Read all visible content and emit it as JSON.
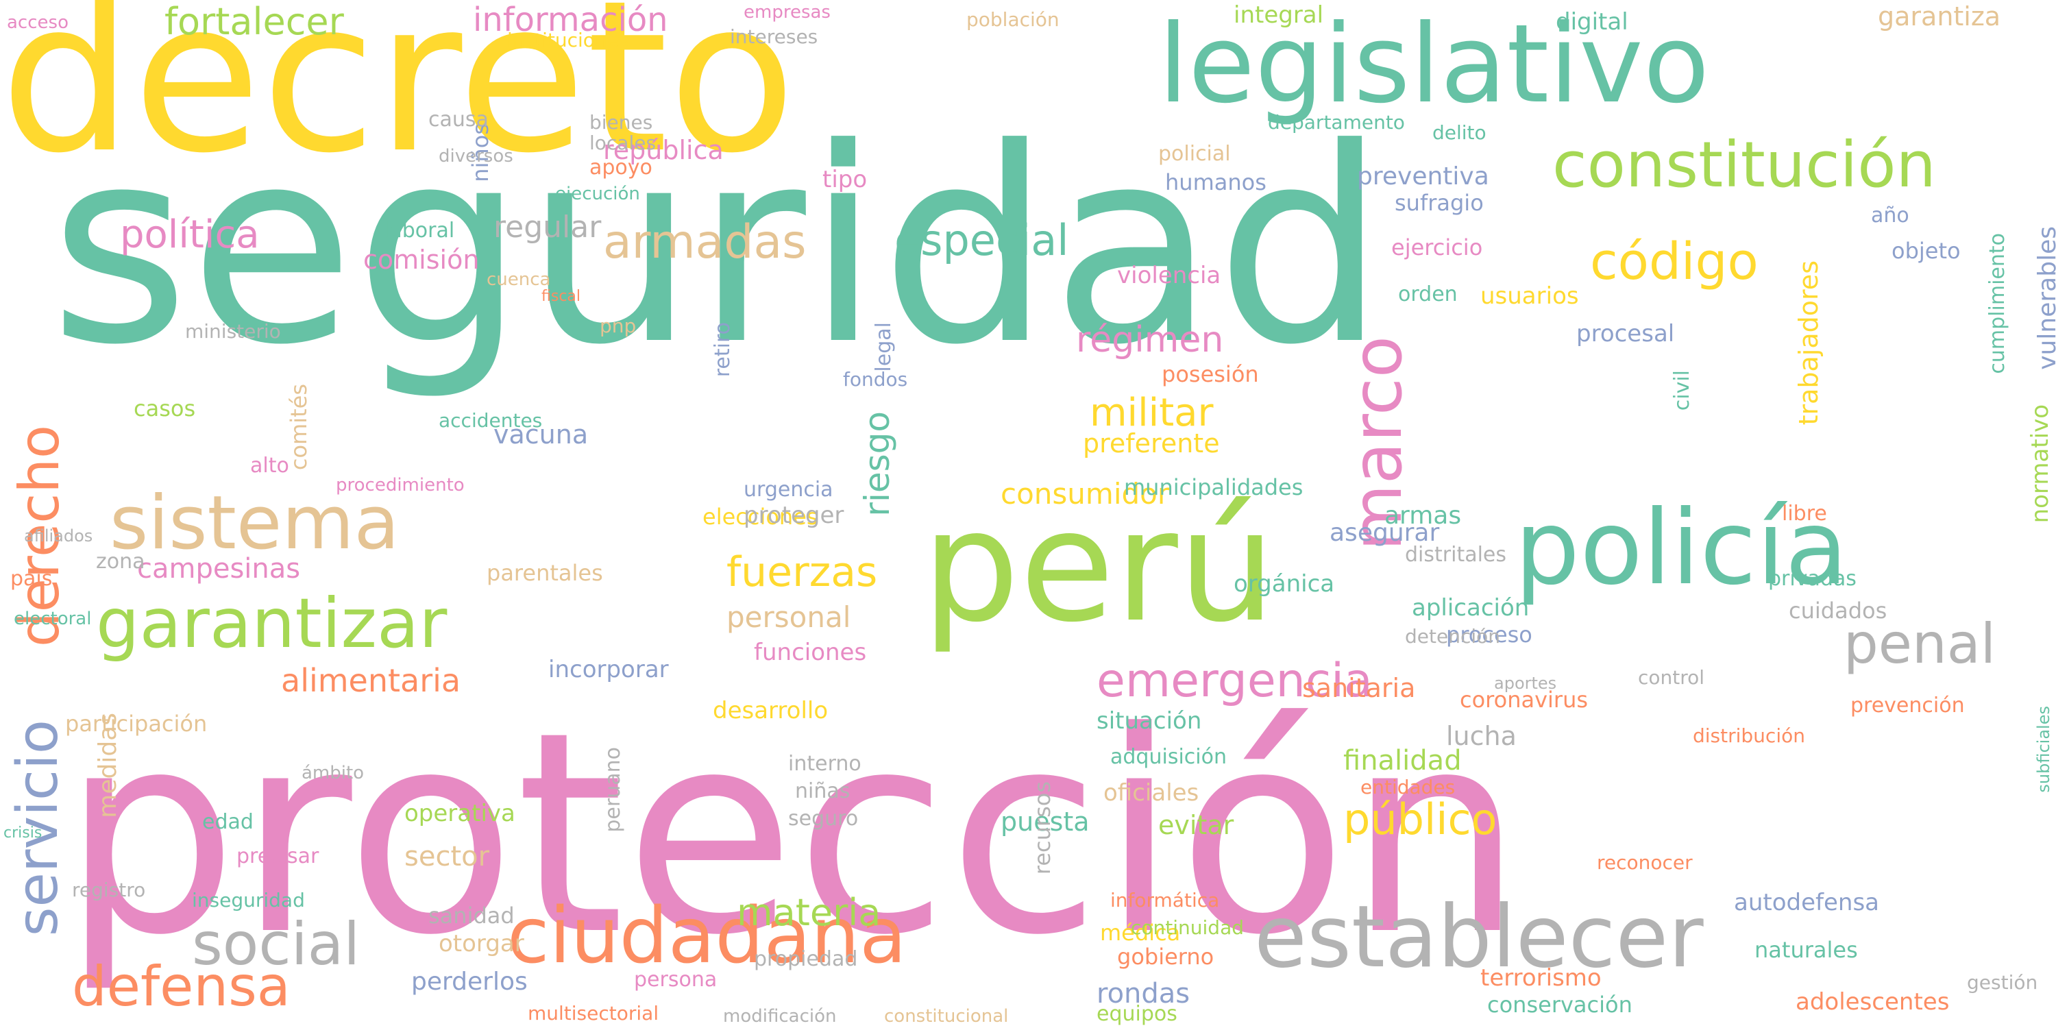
{
  "palette": {
    "green": "#66c2a5",
    "orange": "#fc8d62",
    "blue": "#8da0cb",
    "pink": "#e78ac3",
    "lime": "#a6d854",
    "yellow": "#ffd92f",
    "tan": "#e5c494",
    "gray": "#b3b3b3"
  },
  "words": [
    {
      "text": "seguridad",
      "color": "green"
    },
    {
      "text": "protección",
      "color": "pink"
    },
    {
      "text": "decreto",
      "color": "yellow"
    },
    {
      "text": "legislativo",
      "color": "green"
    },
    {
      "text": "perú",
      "color": "lime"
    },
    {
      "text": "policía",
      "color": "green"
    },
    {
      "text": "establecer",
      "color": "gray"
    },
    {
      "text": "ciudadana",
      "color": "orange"
    },
    {
      "text": "sistema",
      "color": "tan"
    },
    {
      "text": "garantizar",
      "color": "lime"
    },
    {
      "text": "constitución",
      "color": "lime"
    },
    {
      "text": "marco",
      "color": "pink"
    },
    {
      "text": "social",
      "color": "gray"
    },
    {
      "text": "defensa",
      "color": "orange"
    },
    {
      "text": "servicio",
      "color": "blue"
    },
    {
      "text": "derecho",
      "color": "orange"
    },
    {
      "text": "emergencia",
      "color": "pink"
    },
    {
      "text": "penal",
      "color": "gray"
    },
    {
      "text": "código",
      "color": "yellow"
    },
    {
      "text": "armadas",
      "color": "tan"
    },
    {
      "text": "fuerzas",
      "color": "yellow"
    },
    {
      "text": "militar",
      "color": "yellow"
    },
    {
      "text": "especial",
      "color": "green"
    },
    {
      "text": "fortalecer",
      "color": "lime"
    },
    {
      "text": "información",
      "color": "pink"
    },
    {
      "text": "política",
      "color": "pink"
    },
    {
      "text": "alimentaria",
      "color": "orange"
    },
    {
      "text": "régimen",
      "color": "pink"
    },
    {
      "text": "riesgo",
      "color": "green"
    },
    {
      "text": "consumidor",
      "color": "yellow"
    },
    {
      "text": "público",
      "color": "yellow"
    },
    {
      "text": "materia",
      "color": "lime"
    },
    {
      "text": "vacuna",
      "color": "blue"
    },
    {
      "text": "campesinas",
      "color": "pink"
    },
    {
      "text": "personal",
      "color": "tan"
    },
    {
      "text": "regular",
      "color": "gray"
    },
    {
      "text": "comisión",
      "color": "pink"
    },
    {
      "text": "república",
      "color": "pink"
    },
    {
      "text": "preventiva",
      "color": "blue"
    },
    {
      "text": "integral",
      "color": "lime"
    },
    {
      "text": "digital",
      "color": "green"
    },
    {
      "text": "garantiza",
      "color": "tan"
    },
    {
      "text": "aplicación",
      "color": "green"
    },
    {
      "text": "orgánica",
      "color": "green"
    },
    {
      "text": "asegurar",
      "color": "blue"
    },
    {
      "text": "armas",
      "color": "green"
    },
    {
      "text": "procesal",
      "color": "blue"
    },
    {
      "text": "usuarios",
      "color": "yellow"
    },
    {
      "text": "trabajadores",
      "color": "yellow"
    },
    {
      "text": "vulnerables",
      "color": "blue"
    },
    {
      "text": "cumplimiento",
      "color": "green"
    },
    {
      "text": "normativo",
      "color": "lime"
    },
    {
      "text": "autodefensa",
      "color": "blue"
    },
    {
      "text": "terrorismo",
      "color": "orange"
    },
    {
      "text": "conservación",
      "color": "green"
    },
    {
      "text": "adolescentes",
      "color": "orange"
    },
    {
      "text": "rondas",
      "color": "blue"
    },
    {
      "text": "gobierno",
      "color": "orange"
    },
    {
      "text": "multisectorial",
      "color": "orange"
    },
    {
      "text": "perderlos",
      "color": "blue"
    },
    {
      "text": "modificación",
      "color": "gray"
    },
    {
      "text": "constitucional",
      "color": "tan"
    },
    {
      "text": "finalidad",
      "color": "lime"
    },
    {
      "text": "entidades",
      "color": "orange"
    },
    {
      "text": "sanitaria",
      "color": "orange"
    },
    {
      "text": "situación",
      "color": "green"
    },
    {
      "text": "desarrollo",
      "color": "yellow"
    },
    {
      "text": "incorporar",
      "color": "blue"
    },
    {
      "text": "funciones",
      "color": "pink"
    },
    {
      "text": "participación",
      "color": "tan"
    },
    {
      "text": "medidas",
      "color": "tan"
    },
    {
      "text": "sector",
      "color": "tan"
    },
    {
      "text": "operativa",
      "color": "lime"
    },
    {
      "text": "sanidad",
      "color": "gray"
    },
    {
      "text": "otorgar",
      "color": "tan"
    },
    {
      "text": "persona",
      "color": "pink"
    },
    {
      "text": "inseguridad",
      "color": "green"
    },
    {
      "text": "procedimiento",
      "color": "pink"
    },
    {
      "text": "municipalidades",
      "color": "green"
    },
    {
      "text": "elecciones",
      "color": "yellow"
    },
    {
      "text": "parentales",
      "color": "tan"
    },
    {
      "text": "proteger",
      "color": "gray"
    },
    {
      "text": "urgencia",
      "color": "blue"
    },
    {
      "text": "posesión",
      "color": "orange"
    },
    {
      "text": "preferente",
      "color": "yellow"
    },
    {
      "text": "cuidados",
      "color": "gray"
    },
    {
      "text": "prevención",
      "color": "orange"
    },
    {
      "text": "proceso",
      "color": "blue"
    },
    {
      "text": "coronavirus",
      "color": "orange"
    },
    {
      "text": "lucha",
      "color": "gray"
    },
    {
      "text": "oficiales",
      "color": "tan"
    },
    {
      "text": "evitar",
      "color": "lime"
    },
    {
      "text": "puesta",
      "color": "green"
    },
    {
      "text": "recursos",
      "color": "gray"
    },
    {
      "text": "adquisición",
      "color": "green"
    },
    {
      "text": "violencia",
      "color": "pink"
    },
    {
      "text": "humanos",
      "color": "blue"
    },
    {
      "text": "policial",
      "color": "tan"
    },
    {
      "text": "ejercicio",
      "color": "pink"
    },
    {
      "text": "sufragio",
      "color": "blue"
    },
    {
      "text": "orden",
      "color": "green"
    },
    {
      "text": "objeto",
      "color": "blue"
    },
    {
      "text": "año",
      "color": "blue"
    },
    {
      "text": "instituciones",
      "color": "yellow"
    },
    {
      "text": "intereses",
      "color": "gray"
    },
    {
      "text": "población",
      "color": "tan"
    },
    {
      "text": "empresas",
      "color": "pink"
    },
    {
      "text": "apoyo",
      "color": "orange"
    },
    {
      "text": "tipo",
      "color": "pink"
    },
    {
      "text": "niños",
      "color": "blue"
    },
    {
      "text": "laboral",
      "color": "green"
    },
    {
      "text": "acceso",
      "color": "pink"
    },
    {
      "text": "alto",
      "color": "pink"
    },
    {
      "text": "comités",
      "color": "tan"
    },
    {
      "text": "casos",
      "color": "lime"
    },
    {
      "text": "accidentes",
      "color": "green"
    },
    {
      "text": "país",
      "color": "orange"
    },
    {
      "text": "legal",
      "color": "blue"
    },
    {
      "text": "retiro",
      "color": "blue"
    },
    {
      "text": "pnp",
      "color": "tan"
    },
    {
      "text": "fondos",
      "color": "blue"
    },
    {
      "text": "civil",
      "color": "green"
    },
    {
      "text": "privadas",
      "color": "green"
    },
    {
      "text": "libre",
      "color": "orange"
    },
    {
      "text": "reconocer",
      "color": "orange"
    },
    {
      "text": "equipos",
      "color": "lime"
    },
    {
      "text": "médica",
      "color": "yellow"
    },
    {
      "text": "naturales",
      "color": "green"
    },
    {
      "text": "propiedad",
      "color": "gray"
    },
    {
      "text": "continuidad",
      "color": "lime"
    },
    {
      "text": "informática",
      "color": "orange"
    },
    {
      "text": "edad",
      "color": "green"
    },
    {
      "text": "ámbito",
      "color": "gray"
    },
    {
      "text": "peruano",
      "color": "gray"
    },
    {
      "text": "seguro",
      "color": "gray"
    },
    {
      "text": "niñas",
      "color": "gray"
    },
    {
      "text": "interno",
      "color": "gray"
    },
    {
      "text": "control",
      "color": "gray"
    },
    {
      "text": "distribución",
      "color": "orange"
    },
    {
      "text": "ministerio",
      "color": "gray"
    },
    {
      "text": "cuenca",
      "color": "tan"
    },
    {
      "text": "fiscal",
      "color": "orange"
    },
    {
      "text": "diversos",
      "color": "gray"
    },
    {
      "text": "causa",
      "color": "gray"
    },
    {
      "text": "ejecución",
      "color": "green"
    },
    {
      "text": "bienes",
      "color": "gray"
    },
    {
      "text": "locales",
      "color": "gray"
    },
    {
      "text": "departamento",
      "color": "green"
    },
    {
      "text": "delito",
      "color": "green"
    },
    {
      "text": "distritales",
      "color": "gray"
    },
    {
      "text": "detención",
      "color": "gray"
    },
    {
      "text": "aportes",
      "color": "gray"
    },
    {
      "text": "precisar",
      "color": "pink"
    },
    {
      "text": "registro",
      "color": "gray"
    },
    {
      "text": "crisis",
      "color": "green"
    },
    {
      "text": "electoral",
      "color": "green"
    },
    {
      "text": "afiliados",
      "color": "gray"
    },
    {
      "text": "zona",
      "color": "gray"
    },
    {
      "text": "subficiales",
      "color": "green"
    },
    {
      "text": "gestión",
      "color": "gray"
    }
  ]
}
